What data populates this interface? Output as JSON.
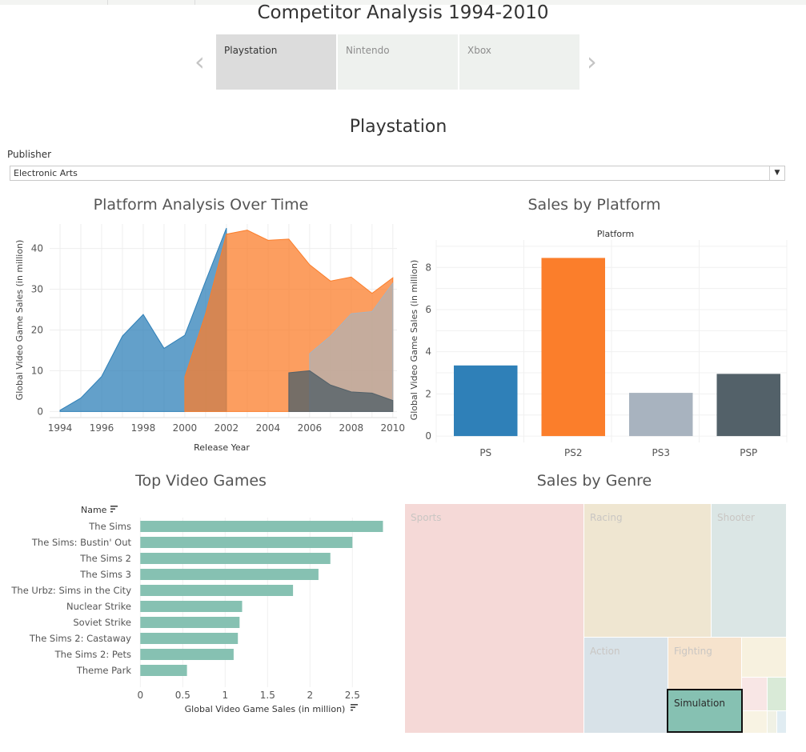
{
  "header": {
    "title": "Competitor Analysis 1994-2010",
    "tabs": [
      {
        "label": "Playstation",
        "active": true
      },
      {
        "label": "Nintendo",
        "active": false
      },
      {
        "label": "Xbox",
        "active": false
      }
    ],
    "prev_icon": "chevron-left-icon",
    "next_icon": "chevron-right-icon"
  },
  "section_title": "Playstation",
  "filter": {
    "label": "Publisher",
    "value": "Electronic Arts",
    "icon": "caret-down-icon"
  },
  "colors": {
    "ps": "#2f80b8",
    "ps2": "#fb7e2b",
    "ps3": "#a8b3bf",
    "psp": "#536169",
    "top_bar": "#86c1b2",
    "sports": "#f5d9d7",
    "racing": "#efe6d1",
    "shooter": "#dbe6e5",
    "action": "#d8e2e8",
    "fighting": "#f6e3cd",
    "simulation": "#86c1b2"
  },
  "chart_data": [
    {
      "type": "area",
      "title": "Platform Analysis Over Time",
      "xlabel": "Release Year",
      "ylabel": "Global Video Game Sales (in million)",
      "xlim": [
        1993.5,
        2010.2
      ],
      "ylim": [
        -1.5,
        46
      ],
      "x_ticks": [
        "1994",
        "1996",
        "1998",
        "2000",
        "2002",
        "2004",
        "2006",
        "2008",
        "2010"
      ],
      "y_ticks": [
        "0",
        "10",
        "20",
        "30",
        "40"
      ],
      "grid": true,
      "series": [
        {
          "name": "PS",
          "x": [
            1994,
            1995,
            1996,
            1997,
            1998,
            1999,
            2000,
            2001,
            2002
          ],
          "y": [
            0.3,
            3.3,
            8.6,
            18.5,
            23.8,
            15.5,
            18.7,
            32,
            45
          ]
        },
        {
          "name": "PS2",
          "x": [
            2000,
            2001,
            2002,
            2003,
            2004,
            2005,
            2006,
            2007,
            2008,
            2009,
            2010
          ],
          "y": [
            8.5,
            24,
            43.5,
            44.5,
            42,
            42.3,
            36,
            32,
            33,
            29,
            32.8
          ]
        },
        {
          "name": "PS3",
          "x": [
            2006,
            2007,
            2008,
            2009,
            2010
          ],
          "y": [
            14.2,
            18.5,
            24,
            24.5,
            31.5
          ]
        },
        {
          "name": "PSP",
          "x": [
            2005,
            2006,
            2007,
            2008,
            2009,
            2010
          ],
          "y": [
            9.5,
            10,
            6.5,
            4.8,
            4.5,
            2.7
          ]
        }
      ]
    },
    {
      "type": "bar",
      "title": "Sales by Platform",
      "header": "Platform",
      "ylabel": "Global Video Game Sales (in million)",
      "categories": [
        "PS",
        "PS2",
        "PS3",
        "PSP"
      ],
      "values": [
        3.35,
        8.45,
        2.05,
        2.95
      ],
      "ylim": [
        -0.3,
        9.3
      ],
      "y_ticks": [
        "0",
        "2",
        "4",
        "6",
        "8"
      ]
    },
    {
      "type": "bar",
      "orientation": "horizontal",
      "title": "Top Video Games",
      "ylabel": "Name",
      "xlabel": "Global Video Game Sales (in million)",
      "categories": [
        "The Sims",
        "The Sims: Bustin' Out",
        "The Sims 2",
        "The Sims 3",
        "The Urbz: Sims in the City",
        "Nuclear Strike",
        "Soviet Strike",
        "The Sims 2: Castaway",
        "The Sims 2: Pets",
        "Theme Park"
      ],
      "values": [
        2.86,
        2.5,
        2.24,
        2.1,
        1.8,
        1.2,
        1.17,
        1.15,
        1.1,
        0.55
      ],
      "xlim": [
        -0.05,
        2.95
      ],
      "x_ticks": [
        "0",
        "0.5",
        "1",
        "1.5",
        "2",
        "2.5"
      ]
    },
    {
      "type": "treemap",
      "title": "Sales by Genre",
      "labels": [
        "Sports",
        "Racing",
        "Shooter",
        "Action",
        "Fighting",
        "Simulation"
      ],
      "selected": "Simulation"
    }
  ]
}
